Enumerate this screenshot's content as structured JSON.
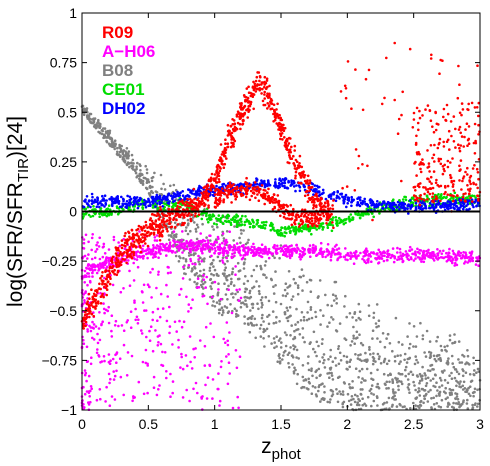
{
  "chart_data": {
    "type": "scatter",
    "title": "",
    "xlabel": {
      "main": "z",
      "sub": "phot"
    },
    "ylabel": {
      "pre": "log(SFR/SFR",
      "sub": "TIR",
      "post": ")[24]"
    },
    "xlim": [
      0,
      3
    ],
    "ylim": [
      -1,
      1
    ],
    "x_ticks": [
      0,
      0.5,
      1,
      1.5,
      2,
      2.5,
      3
    ],
    "x_tick_labels": [
      "0",
      "0.5",
      "1",
      "1.5",
      "2",
      "2.5",
      "3"
    ],
    "y_ticks": [
      -1,
      -0.75,
      -0.5,
      -0.25,
      0,
      0.25,
      0.5,
      0.75,
      1
    ],
    "y_tick_labels": [
      "−1",
      "−0.75",
      "−0.5",
      "−0.25",
      "0",
      "0.25",
      "0.5",
      "0.75",
      "1"
    ],
    "grid": false,
    "reference_line_y": 0,
    "legend_position": "top-left",
    "series": [
      {
        "name": "B08",
        "color": "#808080",
        "trend": [
          [
            0.0,
            0.52
          ],
          [
            0.25,
            0.35
          ],
          [
            0.5,
            0.2
          ],
          [
            0.75,
            0.1
          ],
          [
            1.0,
            0.0
          ],
          [
            1.25,
            -0.1
          ],
          [
            1.5,
            -0.2
          ],
          [
            1.75,
            -0.3
          ],
          [
            2.0,
            -0.4
          ],
          [
            2.25,
            -0.5
          ],
          [
            2.5,
            -0.57
          ],
          [
            2.75,
            -0.62
          ],
          [
            3.0,
            -0.65
          ]
        ],
        "lower_envelope": [
          [
            0.0,
            0.5
          ],
          [
            0.25,
            0.3
          ],
          [
            0.5,
            0.1
          ],
          [
            0.75,
            -0.3
          ],
          [
            1.0,
            -0.5
          ],
          [
            1.25,
            -0.6
          ],
          [
            1.5,
            -0.8
          ],
          [
            1.75,
            -0.95
          ],
          [
            2.0,
            -1.0
          ],
          [
            2.5,
            -1.0
          ],
          [
            3.0,
            -1.0
          ]
        ]
      },
      {
        "name": "A−H06",
        "color": "#ff00ff",
        "trend": [
          [
            0.0,
            -0.3
          ],
          [
            0.25,
            -0.25
          ],
          [
            0.5,
            -0.2
          ],
          [
            0.75,
            -0.17
          ],
          [
            1.0,
            -0.18
          ],
          [
            1.25,
            -0.2
          ],
          [
            1.5,
            -0.2
          ],
          [
            1.75,
            -0.2
          ],
          [
            2.0,
            -0.22
          ],
          [
            2.25,
            -0.23
          ],
          [
            2.5,
            -0.22
          ],
          [
            2.75,
            -0.22
          ],
          [
            3.0,
            -0.25
          ]
        ],
        "spread_low_z": [
          -1.0,
          -0.1
        ]
      },
      {
        "name": "CE01",
        "color": "#00dd00",
        "trend": [
          [
            0.0,
            0.0
          ],
          [
            0.25,
            0.0
          ],
          [
            0.5,
            0.04
          ],
          [
            0.75,
            0.04
          ],
          [
            1.0,
            -0.04
          ],
          [
            1.25,
            -0.05
          ],
          [
            1.5,
            -0.1
          ],
          [
            1.75,
            -0.08
          ],
          [
            2.0,
            -0.04
          ],
          [
            2.25,
            0.02
          ],
          [
            2.5,
            0.05
          ],
          [
            2.75,
            0.06
          ],
          [
            3.0,
            0.06
          ]
        ]
      },
      {
        "name": "DH02",
        "color": "#0000ff",
        "trend": [
          [
            0.0,
            0.05
          ],
          [
            0.25,
            0.05
          ],
          [
            0.5,
            0.05
          ],
          [
            0.75,
            0.08
          ],
          [
            1.0,
            0.11
          ],
          [
            1.25,
            0.13
          ],
          [
            1.5,
            0.15
          ],
          [
            1.75,
            0.11
          ],
          [
            2.0,
            0.06
          ],
          [
            2.25,
            0.03
          ],
          [
            2.5,
            0.02
          ],
          [
            2.75,
            0.03
          ],
          [
            3.0,
            0.04
          ]
        ]
      },
      {
        "name": "R09",
        "color": "#ff0000",
        "upper_branch": [
          [
            0.0,
            -0.55
          ],
          [
            0.1,
            -0.45
          ],
          [
            0.3,
            -0.2
          ],
          [
            0.6,
            -0.05
          ],
          [
            0.9,
            0.05
          ],
          [
            1.0,
            0.15
          ],
          [
            1.1,
            0.35
          ],
          [
            1.25,
            0.55
          ],
          [
            1.35,
            0.65
          ],
          [
            1.45,
            0.5
          ],
          [
            1.6,
            0.25
          ],
          [
            1.75,
            0.05
          ],
          [
            1.9,
            -0.02
          ]
        ],
        "lower_branch": [
          [
            1.0,
            0.05
          ],
          [
            1.1,
            0.1
          ],
          [
            1.25,
            0.12
          ],
          [
            1.45,
            0.05
          ],
          [
            1.6,
            -0.03
          ],
          [
            1.8,
            -0.04
          ]
        ],
        "tail_z_range": [
          2.5,
          3.0
        ],
        "tail_y_range": [
          0.05,
          0.55
        ]
      }
    ]
  }
}
